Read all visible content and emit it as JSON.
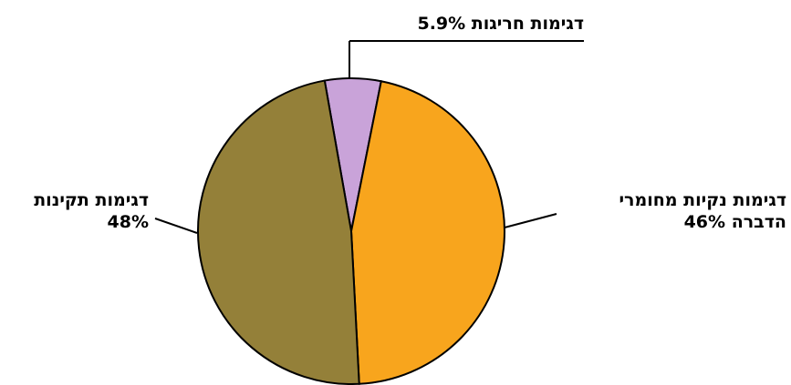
{
  "chart_data": {
    "type": "pie",
    "categories": [
      "דגימות חריגות",
      "דגימות נקיות מחומרי הדברה",
      "דגימות תקינות"
    ],
    "values": [
      5.9,
      46,
      48
    ],
    "value_labels": [
      "5.9%",
      "46%",
      "48%"
    ],
    "colors": [
      "#c9a3d9",
      "#f8a51d",
      "#948039"
    ]
  }
}
